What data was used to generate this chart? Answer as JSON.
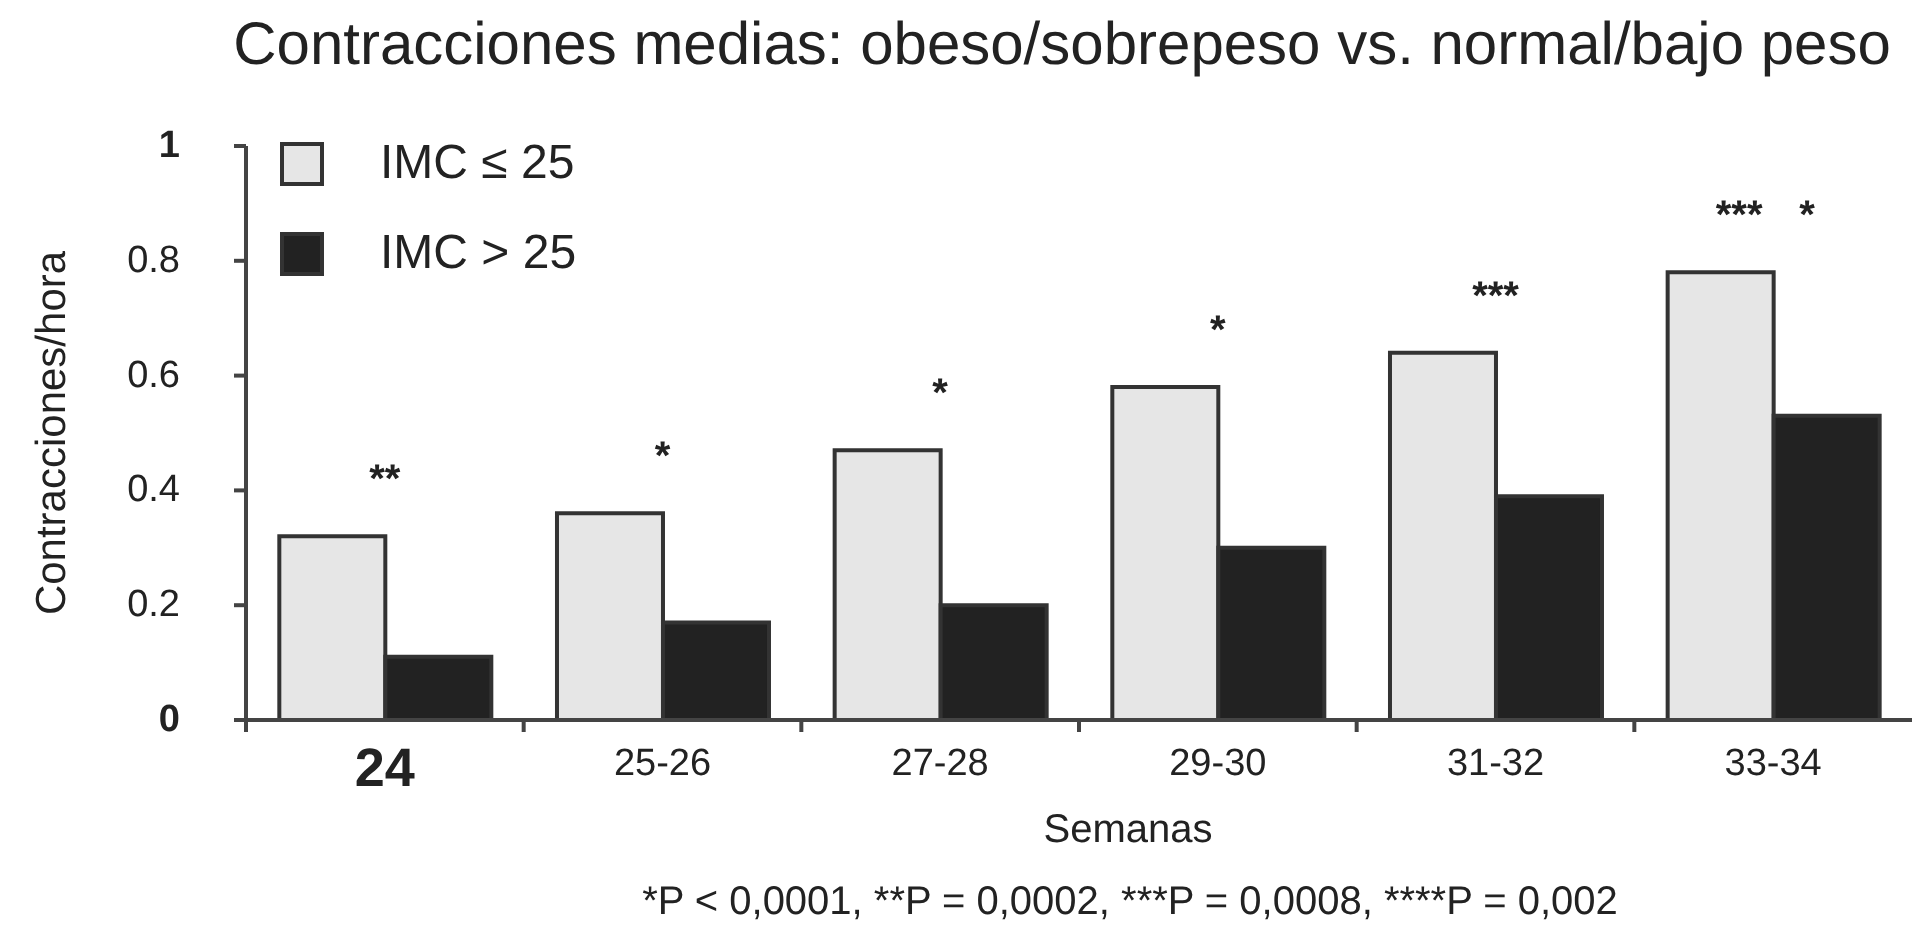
{
  "chart_data": {
    "type": "bar",
    "title": "Contracciones medias: obeso/sobrepeso vs. normal/bajo peso",
    "xlabel": "Semanas",
    "ylabel": "Contracciones/hora",
    "categories": [
      "24",
      "25-26",
      "27-28",
      "29-30",
      "31-32",
      "33-34"
    ],
    "series": [
      {
        "name": "IMC ≤ 25",
        "color": "#e6e6e6",
        "values": [
          0.32,
          0.36,
          0.47,
          0.58,
          0.64,
          0.78
        ]
      },
      {
        "name": "IMC > 25",
        "color": "#222222",
        "values": [
          0.11,
          0.17,
          0.2,
          0.3,
          0.39,
          0.53
        ]
      }
    ],
    "ylim": [
      0,
      1
    ],
    "yticks": [
      0,
      0.2,
      0.4,
      0.6,
      0.8,
      1
    ],
    "legend": "top left",
    "annotations": [
      {
        "text": "**",
        "x": "24",
        "y": 0.32
      },
      {
        "text": "*",
        "x": "25-26",
        "y": 0.36
      },
      {
        "text": "*",
        "x": "27-28",
        "y": 0.47
      },
      {
        "text": "*",
        "x": "29-30",
        "y": 0.58
      },
      {
        "text": "***",
        "x": "31-32",
        "y": 0.64
      },
      {
        "text": "***",
        "x": "33-34",
        "y": 0.78
      },
      {
        "text": "*",
        "x": "33-34",
        "y": 0.78
      },
      "*P < 0,0001, **P = 0,0002, ***P = 0,0008, ****P = 0,002"
    ]
  }
}
